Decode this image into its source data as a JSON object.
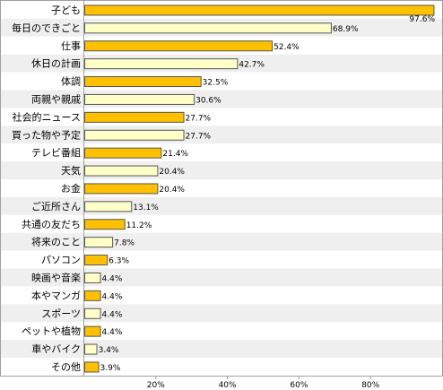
{
  "chart_data": {
    "type": "bar",
    "orientation": "horizontal",
    "title": "",
    "xlabel": "",
    "ylabel": "",
    "unit": "%",
    "xlim": [
      0,
      100
    ],
    "x_ticks": [
      20,
      40,
      60,
      80
    ],
    "x_tick_labels": [
      "20%",
      "40%",
      "60%",
      "80%"
    ],
    "grid": false,
    "categories": [
      "子ども",
      "毎日のできごと",
      "仕事",
      "休日の計画",
      "体調",
      "両親や親戚",
      "社会的ニュース",
      "買った物や予定",
      "テレビ番組",
      "天気",
      "お金",
      "ご近所さん",
      "共通の友だち",
      "将来のこと",
      "パソコン",
      "映画や音楽",
      "本やマンガ",
      "スポーツ",
      "ペットや植物",
      "車やバイク",
      "その他"
    ],
    "values": [
      97.6,
      68.9,
      52.4,
      42.7,
      32.5,
      30.6,
      27.7,
      27.7,
      21.4,
      20.4,
      20.4,
      13.1,
      11.2,
      7.8,
      6.3,
      4.4,
      4.4,
      4.4,
      4.4,
      3.4,
      3.9
    ],
    "value_labels": [
      "97.6%",
      "68.9%",
      "52.4%",
      "42.7%",
      "32.5%",
      "30.6%",
      "27.7%",
      "27.7%",
      "21.4%",
      "20.4%",
      "20.4%",
      "13.1%",
      "11.2%",
      "7.8%",
      "6.3%",
      "4.4%",
      "4.4%",
      "4.4%",
      "4.4%",
      "3.4%",
      "3.9%"
    ],
    "bar_colors": [
      "#FFC000",
      "#FFFFC8",
      "#FFC000",
      "#FFFFC8",
      "#FFC000",
      "#FFFFC8",
      "#FFC000",
      "#FFFFC8",
      "#FFC000",
      "#FFFFC8",
      "#FFC000",
      "#FFFFC8",
      "#FFC000",
      "#FFFFC8",
      "#FFC000",
      "#FFFFC8",
      "#FFC000",
      "#FFFFC8",
      "#FFC000",
      "#FFFFC8",
      "#FFC000"
    ]
  },
  "colors": {
    "row_band_even": "#FFFFFF",
    "row_band_odd": "#EFEFEF",
    "frame": "#A0A0A0",
    "bar_stroke": "#555555"
  }
}
